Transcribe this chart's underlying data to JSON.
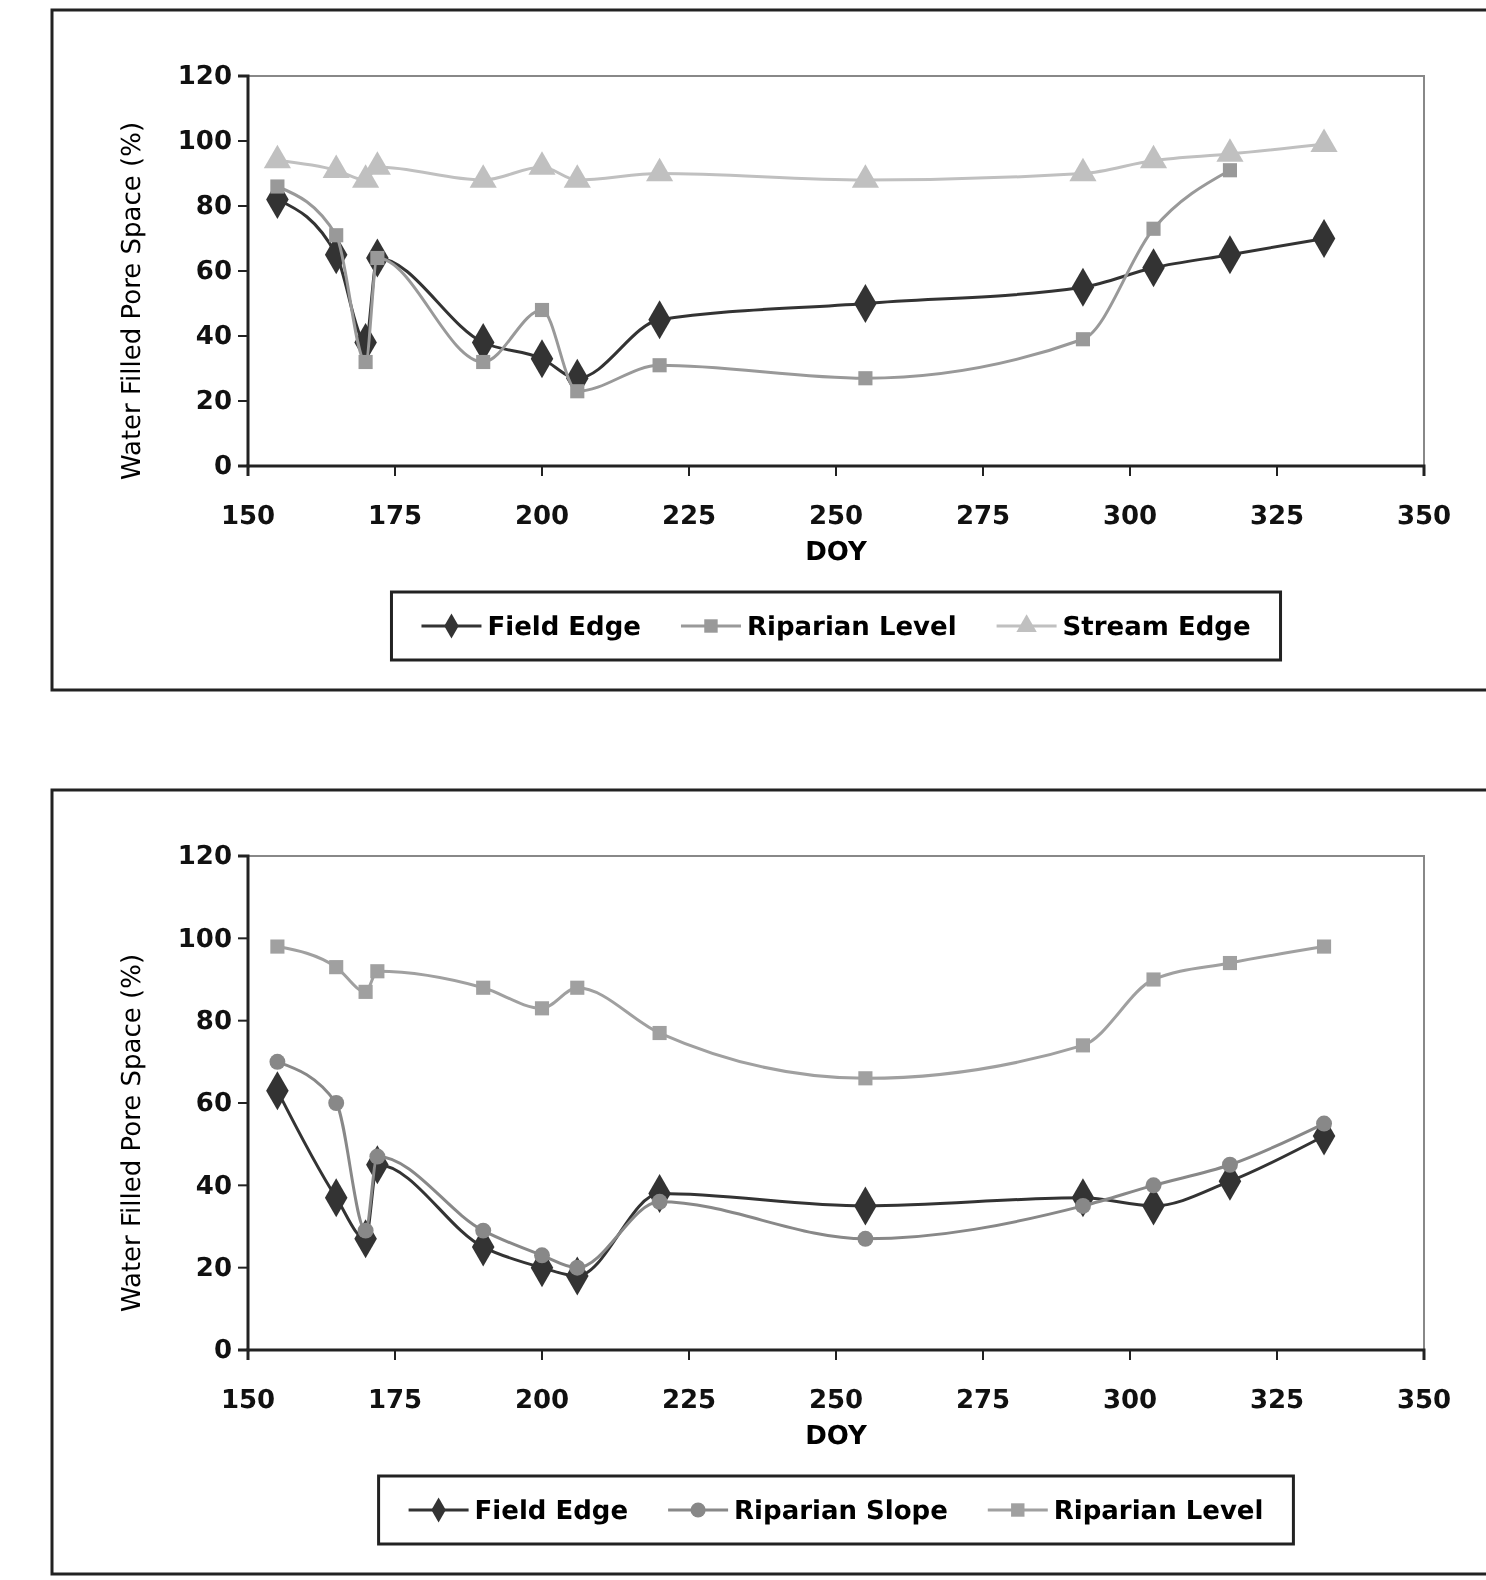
{
  "chart_data": [
    {
      "type": "line",
      "xlabel": "DOY",
      "ylabel": "Water Filled Pore Space (%)",
      "x": [
        155,
        165,
        170,
        172,
        190,
        200,
        206,
        220,
        255,
        292,
        304,
        317,
        333
      ],
      "xlim": [
        150,
        350
      ],
      "xticks": [
        150,
        175,
        200,
        225,
        250,
        275,
        300,
        325,
        350
      ],
      "ylim": [
        0,
        120
      ],
      "yticks": [
        0,
        20,
        40,
        60,
        80,
        100,
        120
      ],
      "grid": false,
      "legend": "bottom",
      "series": [
        {
          "name": "Field Edge",
          "color": "#333333",
          "marker": "diamond",
          "values": [
            82,
            65,
            38,
            64,
            38,
            33,
            27,
            45,
            50,
            55,
            61,
            65,
            70
          ]
        },
        {
          "name": "Riparian Level",
          "color": "#999999",
          "marker": "square",
          "values": [
            86,
            71,
            32,
            64,
            32,
            48,
            23,
            31,
            27,
            39,
            73,
            91,
            null
          ]
        },
        {
          "name": "Stream Edge",
          "color": "#c0c0c0",
          "marker": "triangle",
          "values": [
            94,
            91,
            88,
            92,
            88,
            92,
            88,
            90,
            88,
            90,
            94,
            96,
            99
          ]
        }
      ]
    },
    {
      "type": "line",
      "xlabel": "DOY",
      "ylabel": "Water Filled Pore Space (%)",
      "x": [
        155,
        165,
        170,
        172,
        190,
        200,
        206,
        220,
        255,
        292,
        304,
        317,
        333
      ],
      "xlim": [
        150,
        350
      ],
      "xticks": [
        150,
        175,
        200,
        225,
        250,
        275,
        300,
        325,
        350
      ],
      "ylim": [
        0,
        120
      ],
      "yticks": [
        0,
        20,
        40,
        60,
        80,
        100,
        120
      ],
      "grid": false,
      "legend": "bottom",
      "series": [
        {
          "name": "Field Edge",
          "color": "#333333",
          "marker": "diamond",
          "values": [
            63,
            37,
            27,
            45,
            25,
            20,
            18,
            38,
            35,
            37,
            35,
            41,
            52
          ]
        },
        {
          "name": "Riparian Slope",
          "color": "#888888",
          "marker": "circle",
          "values": [
            70,
            60,
            29,
            47,
            29,
            23,
            20,
            36,
            27,
            35,
            40,
            45,
            55
          ]
        },
        {
          "name": "Riparian Level",
          "color": "#a0a0a0",
          "marker": "square",
          "values": [
            98,
            93,
            87,
            92,
            88,
            83,
            88,
            77,
            66,
            74,
            90,
            94,
            98
          ]
        }
      ]
    }
  ]
}
